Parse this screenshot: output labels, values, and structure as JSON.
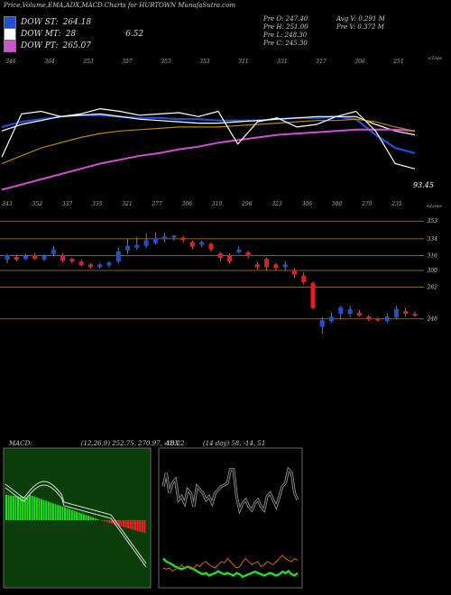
{
  "header": {
    "title": "Price,Volume,EMA,ADX,MACD Charts for HURTOWN  MunafaSutra.com"
  },
  "legend": [
    {
      "label": "DOW ST:",
      "value": "264.18",
      "color": "#1f4fd6"
    },
    {
      "label": "DOW MT:",
      "value": "28",
      "extra": "6.52",
      "color": "#ffffff"
    },
    {
      "label": "DOW PT:",
      "value": "265.07",
      "color": "#d050d0"
    }
  ],
  "stats": {
    "col1": [
      "Pre  O: 247.40",
      "Pre  H: 251.00",
      "Pre  L: 248.30",
      "Pre  C: 245.30"
    ],
    "col2": [
      "Avg V: 0.291 M",
      "Pre  V: 0.372  M"
    ]
  },
  "top_panel": {
    "price_label": "93.45",
    "top_caption": "<Tops",
    "bottom_caption": "<Lows",
    "top_numbers": [
      "346",
      "364",
      "353",
      "357",
      "353",
      "353",
      "311",
      "331",
      "317",
      "306",
      "251"
    ],
    "low_numbers": [
      "343",
      "352",
      "337",
      "335",
      "321",
      "277",
      "306",
      "310",
      "296",
      "323",
      "306",
      "300",
      "279",
      "235"
    ]
  },
  "chart_data": [
    {
      "type": "line",
      "title": "",
      "description_series": [
        {
          "name": "DOW ST",
          "color": "#1f4fd6",
          "values": [
            0.58,
            0.62,
            0.64,
            0.66,
            0.67,
            0.67,
            0.66,
            0.65,
            0.65,
            0.64,
            0.64,
            0.63,
            0.63,
            0.63,
            0.64,
            0.65,
            0.65,
            0.66,
            0.64,
            0.52,
            0.42,
            0.38
          ]
        },
        {
          "name": "DOW MT",
          "color": "#ffffff",
          "values": [
            0.55,
            0.6,
            0.63,
            0.66,
            0.67,
            0.68,
            0.66,
            0.64,
            0.63,
            0.62,
            0.61,
            0.61,
            0.62,
            0.63,
            0.64,
            0.65,
            0.66,
            0.66,
            0.66,
            0.6,
            0.55,
            0.52
          ]
        },
        {
          "name": "DOW PT",
          "color": "#d050d0",
          "values": [
            0.1,
            0.14,
            0.18,
            0.22,
            0.26,
            0.3,
            0.33,
            0.36,
            0.38,
            0.41,
            0.43,
            0.46,
            0.48,
            0.5,
            0.52,
            0.53,
            0.54,
            0.55,
            0.56,
            0.56,
            0.56,
            0.55
          ]
        },
        {
          "name": "EMA long",
          "color": "#b8860b",
          "values": [
            0.3,
            0.36,
            0.42,
            0.46,
            0.5,
            0.53,
            0.55,
            0.56,
            0.57,
            0.58,
            0.58,
            0.58,
            0.59,
            0.6,
            0.61,
            0.62,
            0.63,
            0.63,
            0.64,
            0.62,
            0.58,
            0.55
          ]
        },
        {
          "name": "price",
          "color": "#ffffff",
          "values": [
            0.35,
            0.68,
            0.7,
            0.66,
            0.68,
            0.72,
            0.7,
            0.67,
            0.68,
            0.69,
            0.66,
            0.7,
            0.45,
            0.62,
            0.65,
            0.58,
            0.6,
            0.66,
            0.7,
            0.55,
            0.3,
            0.26
          ]
        }
      ]
    },
    {
      "type": "candlestick",
      "title": "",
      "levels": [
        353,
        334,
        316,
        300,
        282,
        248
      ],
      "ylim": [
        240,
        360
      ],
      "candles": [
        {
          "o": 312,
          "c": 316,
          "h": 318,
          "l": 308,
          "up": true
        },
        {
          "o": 314,
          "c": 312,
          "h": 317,
          "l": 310,
          "up": false
        },
        {
          "o": 313,
          "c": 315,
          "h": 318,
          "l": 311,
          "up": true
        },
        {
          "o": 316,
          "c": 313,
          "h": 319,
          "l": 311,
          "up": false
        },
        {
          "o": 312,
          "c": 315,
          "h": 317,
          "l": 310,
          "up": true
        },
        {
          "o": 318,
          "c": 322,
          "h": 326,
          "l": 315,
          "up": true
        },
        {
          "o": 316,
          "c": 311,
          "h": 318,
          "l": 309,
          "up": false
        },
        {
          "o": 312,
          "c": 310,
          "h": 314,
          "l": 307,
          "up": false
        },
        {
          "o": 309,
          "c": 306,
          "h": 312,
          "l": 304,
          "up": false
        },
        {
          "o": 306,
          "c": 304,
          "h": 308,
          "l": 302,
          "up": false
        },
        {
          "o": 304,
          "c": 306,
          "h": 308,
          "l": 302,
          "up": true
        },
        {
          "o": 306,
          "c": 308,
          "h": 310,
          "l": 303,
          "up": true
        },
        {
          "o": 310,
          "c": 320,
          "h": 325,
          "l": 308,
          "up": true
        },
        {
          "o": 322,
          "c": 326,
          "h": 334,
          "l": 318,
          "up": true
        },
        {
          "o": 325,
          "c": 327,
          "h": 336,
          "l": 322,
          "up": true
        },
        {
          "o": 327,
          "c": 332,
          "h": 340,
          "l": 324,
          "up": true
        },
        {
          "o": 330,
          "c": 334,
          "h": 341,
          "l": 328,
          "up": true
        },
        {
          "o": 334,
          "c": 336,
          "h": 340,
          "l": 330,
          "up": true
        },
        {
          "o": 336,
          "c": 337,
          "h": 338,
          "l": 332,
          "up": true
        },
        {
          "o": 335,
          "c": 333,
          "h": 337,
          "l": 330,
          "up": false
        },
        {
          "o": 330,
          "c": 326,
          "h": 332,
          "l": 323,
          "up": false
        },
        {
          "o": 328,
          "c": 330,
          "h": 332,
          "l": 325,
          "up": true
        },
        {
          "o": 328,
          "c": 323,
          "h": 330,
          "l": 320,
          "up": false
        },
        {
          "o": 318,
          "c": 314,
          "h": 320,
          "l": 310,
          "up": false
        },
        {
          "o": 316,
          "c": 310,
          "h": 318,
          "l": 307,
          "up": false
        },
        {
          "o": 320,
          "c": 322,
          "h": 326,
          "l": 318,
          "up": true
        },
        {
          "o": 319,
          "c": 316,
          "h": 321,
          "l": 313,
          "up": false
        },
        {
          "o": 306,
          "c": 304,
          "h": 309,
          "l": 301,
          "up": false
        },
        {
          "o": 312,
          "c": 304,
          "h": 314,
          "l": 300,
          "up": false
        },
        {
          "o": 306,
          "c": 303,
          "h": 308,
          "l": 300,
          "up": false
        },
        {
          "o": 304,
          "c": 306,
          "h": 310,
          "l": 300,
          "up": true
        },
        {
          "o": 300,
          "c": 296,
          "h": 302,
          "l": 292,
          "up": false
        },
        {
          "o": 294,
          "c": 288,
          "h": 298,
          "l": 285,
          "up": false
        },
        {
          "o": 286,
          "c": 260,
          "h": 288,
          "l": 258,
          "up": false
        },
        {
          "o": 240,
          "c": 246,
          "h": 250,
          "l": 232,
          "up": true
        },
        {
          "o": 246,
          "c": 250,
          "h": 255,
          "l": 244,
          "up": true
        },
        {
          "o": 254,
          "c": 260,
          "h": 262,
          "l": 248,
          "up": true
        },
        {
          "o": 254,
          "c": 258,
          "h": 262,
          "l": 250,
          "up": true
        },
        {
          "o": 254,
          "c": 252,
          "h": 258,
          "l": 250,
          "up": false
        },
        {
          "o": 250,
          "c": 248,
          "h": 252,
          "l": 246,
          "up": false
        },
        {
          "o": 248,
          "c": 247,
          "h": 250,
          "l": 245,
          "up": false
        },
        {
          "o": 246,
          "c": 250,
          "h": 254,
          "l": 244,
          "up": true
        },
        {
          "o": 250,
          "c": 258,
          "h": 262,
          "l": 248,
          "up": true
        },
        {
          "o": 256,
          "c": 254,
          "h": 260,
          "l": 250,
          "up": false
        },
        {
          "o": 253,
          "c": 252,
          "h": 256,
          "l": 250,
          "up": false
        }
      ]
    }
  ],
  "macd": {
    "label": "MACD:",
    "params": "(12,26,9) 252.75,  270.97,  -18.22",
    "title": ""
  },
  "adx": {
    "label": "ADX",
    "params": "(14  day) 58,  -14,  51"
  },
  "colors": {
    "level_line": "#b8860b",
    "up_candle": "#1f4fd6",
    "down_candle": "#e02020",
    "macd_bg": "#0a3d0a",
    "macd_pos": "#22dd22",
    "macd_neg": "#ee2222"
  }
}
